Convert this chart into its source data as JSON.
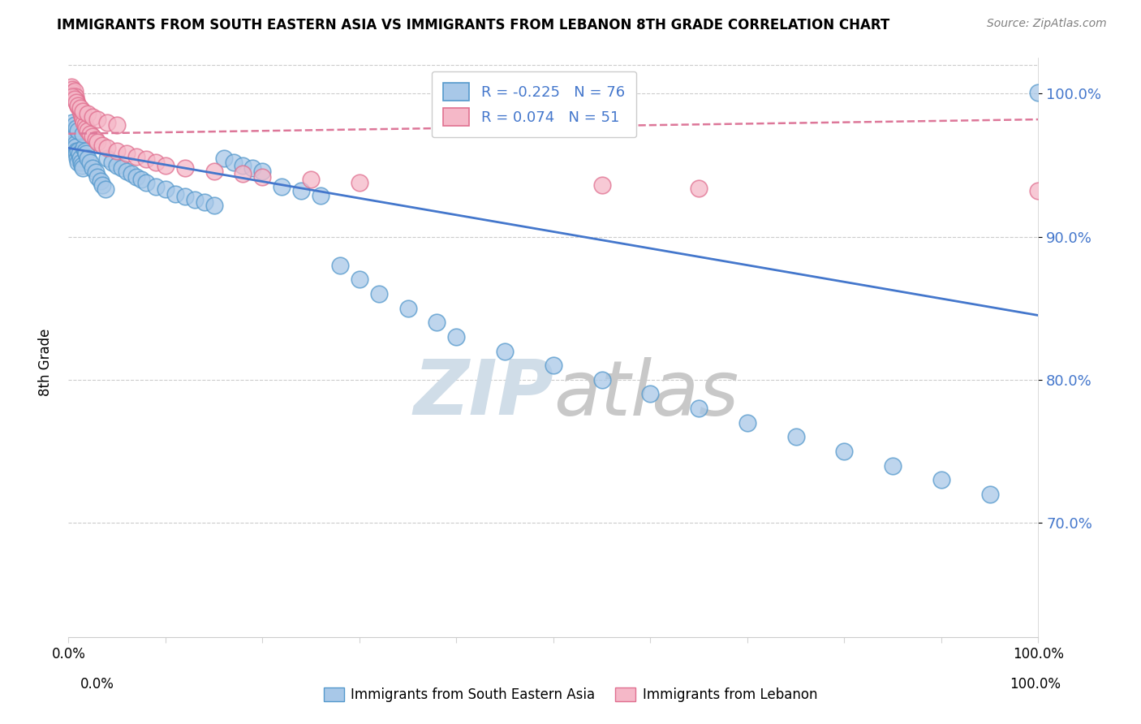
{
  "title": "IMMIGRANTS FROM SOUTH EASTERN ASIA VS IMMIGRANTS FROM LEBANON 8TH GRADE CORRELATION CHART",
  "source": "Source: ZipAtlas.com",
  "ylabel": "8th Grade",
  "legend_r1": "R = -0.225",
  "legend_n1": "N = 76",
  "legend_r2": "R = 0.074",
  "legend_n2": "N = 51",
  "color_blue_fill": "#a8c8e8",
  "color_blue_edge": "#5599cc",
  "color_pink_fill": "#f5b8c8",
  "color_pink_edge": "#e07090",
  "color_blue_line": "#4477cc",
  "color_pink_line": "#dd7799",
  "color_ytick": "#4477cc",
  "watermark_color": "#d0dde8",
  "x_min": 0.0,
  "x_max": 1.0,
  "y_min": 0.62,
  "y_max": 1.025,
  "yticks": [
    0.7,
    0.8,
    0.9,
    1.0
  ],
  "blue_line_y0": 0.962,
  "blue_line_y1": 0.845,
  "pink_line_y0": 0.972,
  "pink_line_y1": 0.982,
  "blue_x": [
    0.003,
    0.004,
    0.005,
    0.005,
    0.006,
    0.006,
    0.007,
    0.007,
    0.008,
    0.008,
    0.009,
    0.01,
    0.01,
    0.011,
    0.012,
    0.013,
    0.014,
    0.015,
    0.016,
    0.017,
    0.018,
    0.02,
    0.022,
    0.025,
    0.028,
    0.03,
    0.033,
    0.035,
    0.038,
    0.04,
    0.045,
    0.05,
    0.055,
    0.06,
    0.065,
    0.07,
    0.075,
    0.08,
    0.09,
    0.1,
    0.11,
    0.12,
    0.13,
    0.14,
    0.15,
    0.16,
    0.17,
    0.18,
    0.19,
    0.2,
    0.22,
    0.24,
    0.26,
    0.28,
    0.3,
    0.32,
    0.35,
    0.38,
    0.4,
    0.45,
    0.5,
    0.55,
    0.6,
    0.65,
    0.7,
    0.75,
    0.8,
    0.85,
    0.9,
    0.95,
    1.0,
    0.004,
    0.006,
    0.008,
    0.01,
    0.015
  ],
  "blue_y": [
    0.975,
    0.972,
    0.97,
    0.968,
    0.966,
    0.97,
    0.965,
    0.963,
    0.96,
    0.958,
    0.955,
    0.952,
    0.96,
    0.958,
    0.955,
    0.952,
    0.95,
    0.948,
    0.962,
    0.96,
    0.958,
    0.955,
    0.952,
    0.948,
    0.945,
    0.942,
    0.939,
    0.936,
    0.933,
    0.955,
    0.952,
    0.95,
    0.948,
    0.946,
    0.944,
    0.942,
    0.94,
    0.938,
    0.935,
    0.933,
    0.93,
    0.928,
    0.926,
    0.924,
    0.922,
    0.955,
    0.952,
    0.95,
    0.948,
    0.946,
    0.935,
    0.932,
    0.929,
    0.88,
    0.87,
    0.86,
    0.85,
    0.84,
    0.83,
    0.82,
    0.81,
    0.8,
    0.79,
    0.78,
    0.77,
    0.76,
    0.75,
    0.74,
    0.73,
    0.72,
    1.001,
    0.98,
    0.978,
    0.976,
    0.974,
    0.972
  ],
  "pink_x": [
    0.003,
    0.004,
    0.005,
    0.005,
    0.006,
    0.006,
    0.007,
    0.008,
    0.009,
    0.01,
    0.011,
    0.012,
    0.013,
    0.014,
    0.015,
    0.016,
    0.017,
    0.018,
    0.02,
    0.022,
    0.025,
    0.028,
    0.03,
    0.035,
    0.04,
    0.05,
    0.06,
    0.07,
    0.08,
    0.09,
    0.1,
    0.12,
    0.15,
    0.18,
    0.2,
    0.25,
    0.3,
    0.55,
    0.65,
    1.0,
    0.004,
    0.006,
    0.008,
    0.01,
    0.012,
    0.015,
    0.02,
    0.025,
    0.03,
    0.04,
    0.05
  ],
  "pink_y": [
    1.005,
    1.003,
    1.001,
    0.999,
    0.997,
    1.002,
    0.998,
    0.995,
    0.993,
    0.991,
    0.99,
    0.988,
    0.986,
    0.984,
    0.982,
    0.98,
    0.978,
    0.976,
    0.974,
    0.972,
    0.97,
    0.968,
    0.966,
    0.964,
    0.962,
    0.96,
    0.958,
    0.956,
    0.954,
    0.952,
    0.95,
    0.948,
    0.946,
    0.944,
    0.942,
    0.94,
    0.938,
    0.936,
    0.934,
    0.932,
    0.998,
    0.996,
    0.994,
    0.992,
    0.99,
    0.988,
    0.986,
    0.984,
    0.982,
    0.98,
    0.978
  ]
}
